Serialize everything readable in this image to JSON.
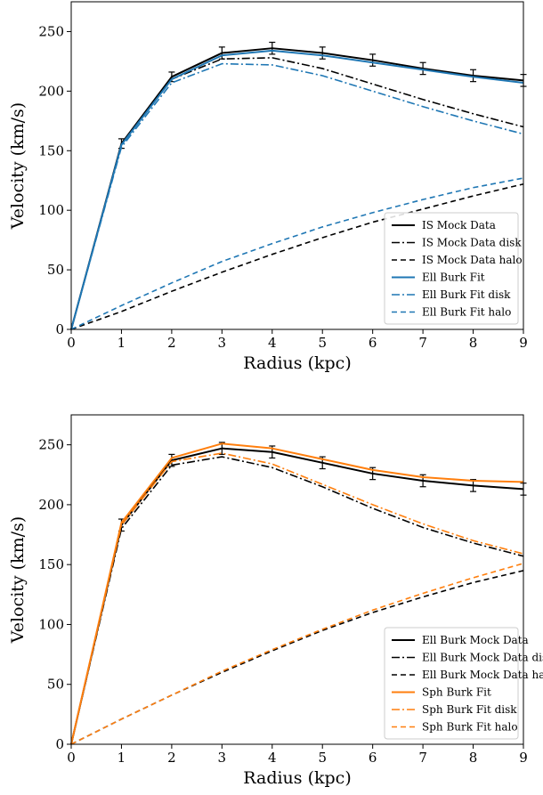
{
  "figure": {
    "panels_count": 2
  },
  "chart_data": [
    {
      "type": "line",
      "xlabel": "Radius (kpc)",
      "ylabel": "Velocity (km/s)",
      "xlim": [
        0,
        9
      ],
      "ylim": [
        0,
        275
      ],
      "x_ticks": [
        0,
        1,
        2,
        3,
        4,
        5,
        6,
        7,
        8,
        9
      ],
      "y_ticks": [
        0,
        50,
        100,
        150,
        200,
        250
      ],
      "grid": false,
      "legend_position": "lower-right",
      "x": [
        0,
        1,
        2,
        3,
        4,
        5,
        6,
        7,
        8,
        9
      ],
      "series": [
        {
          "name": "IS Mock Data",
          "color": "#000000",
          "dash": "solid",
          "values": [
            0,
            156,
            212,
            232,
            236,
            232,
            226,
            219,
            213,
            209
          ],
          "errors": [
            0,
            4,
            4,
            5,
            5,
            5,
            5,
            5,
            5,
            5
          ]
        },
        {
          "name": "IS Mock Data disk",
          "color": "#000000",
          "dash": "dashdot",
          "values": [
            0,
            155,
            210,
            227,
            228,
            219,
            206,
            193,
            181,
            170
          ]
        },
        {
          "name": "IS Mock Data halo",
          "color": "#000000",
          "dash": "dashed",
          "values": [
            0,
            15,
            32,
            48,
            63,
            77,
            90,
            101,
            112,
            122
          ]
        },
        {
          "name": "Ell Burk Fit",
          "color": "#1f77b4",
          "dash": "solid",
          "values": [
            0,
            155,
            210,
            230,
            234,
            230,
            224,
            218,
            212,
            207
          ]
        },
        {
          "name": "Ell Burk Fit disk",
          "color": "#1f77b4",
          "dash": "dashdot",
          "values": [
            0,
            153,
            207,
            223,
            222,
            213,
            200,
            187,
            175,
            164
          ]
        },
        {
          "name": "Ell Burk Fit halo",
          "color": "#1f77b4",
          "dash": "dashed",
          "values": [
            0,
            20,
            39,
            57,
            72,
            86,
            98,
            109,
            119,
            127
          ]
        }
      ]
    },
    {
      "type": "line",
      "xlabel": "Radius (kpc)",
      "ylabel": "Velocity (km/s)",
      "xlim": [
        0,
        9
      ],
      "ylim": [
        0,
        275
      ],
      "x_ticks": [
        0,
        1,
        2,
        3,
        4,
        5,
        6,
        7,
        8,
        9
      ],
      "y_ticks": [
        0,
        50,
        100,
        150,
        200,
        250
      ],
      "grid": false,
      "legend_position": "lower-right",
      "x": [
        0,
        1,
        2,
        3,
        4,
        5,
        6,
        7,
        8,
        9
      ],
      "series": [
        {
          "name": "Ell Burk Mock Data",
          "color": "#000000",
          "dash": "solid",
          "values": [
            0,
            183,
            237,
            247,
            244,
            235,
            226,
            220,
            216,
            213
          ],
          "errors": [
            0,
            5,
            5,
            5,
            5,
            5,
            5,
            5,
            5,
            5
          ]
        },
        {
          "name": "Ell Burk Mock Data disk",
          "color": "#000000",
          "dash": "dashdot",
          "values": [
            0,
            180,
            233,
            240,
            231,
            215,
            197,
            181,
            168,
            157
          ]
        },
        {
          "name": "Ell Burk Mock Data halo",
          "color": "#000000",
          "dash": "dashed",
          "values": [
            0,
            21,
            41,
            60,
            78,
            95,
            110,
            123,
            135,
            145
          ]
        },
        {
          "name": "Sph Burk Fit",
          "color": "#ff7f0e",
          "dash": "solid",
          "values": [
            0,
            185,
            239,
            251,
            247,
            238,
            229,
            223,
            220,
            219
          ]
        },
        {
          "name": "Sph Burk Fit disk",
          "color": "#ff7f0e",
          "dash": "dashdot",
          "values": [
            0,
            183,
            236,
            243,
            234,
            217,
            200,
            184,
            170,
            159
          ]
        },
        {
          "name": "Sph Burk Fit halo",
          "color": "#ff7f0e",
          "dash": "dashed",
          "values": [
            0,
            21,
            41,
            61,
            79,
            96,
            112,
            126,
            139,
            151
          ]
        }
      ]
    }
  ]
}
